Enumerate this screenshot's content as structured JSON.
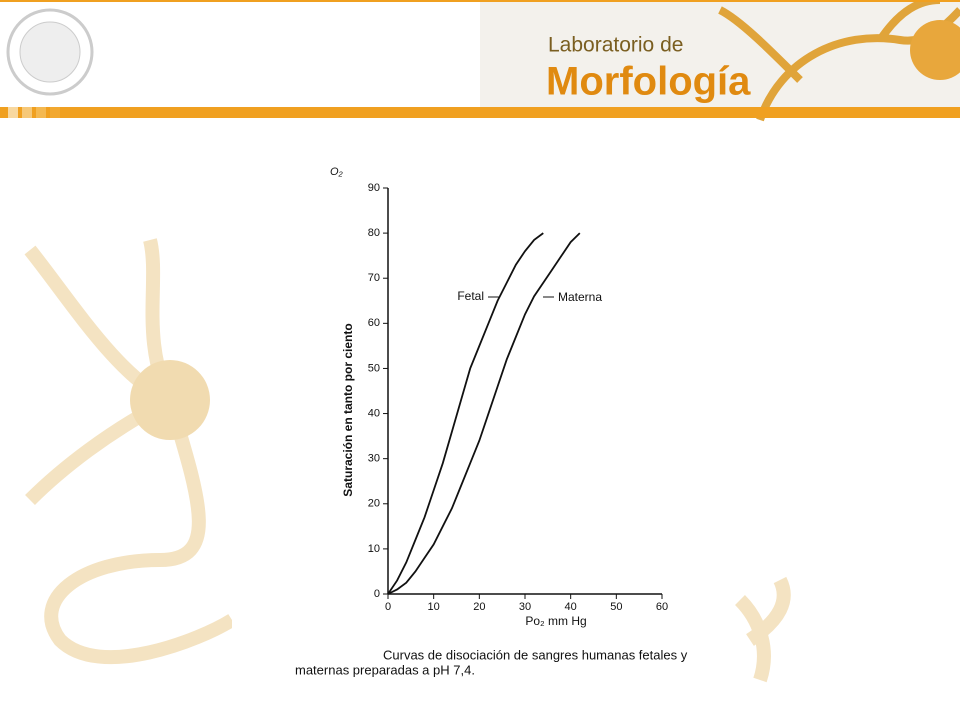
{
  "header": {
    "line1": "Laboratorio de",
    "line2": "Morfología"
  },
  "chart_data": {
    "type": "line",
    "y_top_label": "O₂",
    "ylabel": "Saturación en tanto por ciento",
    "xlabel": "Po₂ mm Hg",
    "caption": [
      "Curvas de disociación de sangres humanas fetales y",
      "maternas preparadas a pH 7,4."
    ],
    "x": [
      0,
      2,
      4,
      6,
      8,
      10,
      12,
      14,
      16,
      18,
      20,
      22,
      24,
      26,
      28,
      30,
      32,
      34,
      36,
      38,
      40,
      42
    ],
    "series": [
      {
        "name": "Fetal",
        "color": "#111111",
        "values": [
          0,
          3,
          7,
          12,
          17,
          23,
          29,
          36,
          43,
          50,
          55,
          60,
          65,
          69,
          73,
          76,
          78.5,
          80,
          null,
          null,
          null,
          null
        ]
      },
      {
        "name": "Materna",
        "color": "#111111",
        "values": [
          0,
          1,
          2.5,
          5,
          8,
          11,
          15,
          19,
          24,
          29,
          34,
          40,
          46,
          52,
          57,
          62,
          66,
          69,
          72,
          75,
          78,
          80
        ]
      }
    ],
    "xlim": [
      0,
      60
    ],
    "xticks": [
      0,
      10,
      20,
      30,
      40,
      50,
      60
    ],
    "ylim": [
      0,
      90
    ],
    "yticks": [
      0,
      10,
      20,
      30,
      40,
      50,
      60,
      70,
      80,
      90
    ]
  }
}
